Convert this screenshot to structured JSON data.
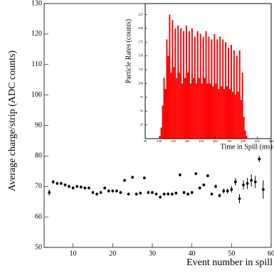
{
  "chart_data": [
    {
      "type": "scatter",
      "y_label": "Average charge/strip (ADC counts)",
      "x_label": "Event number in spill",
      "x": [
        4,
        5,
        6,
        7,
        8,
        9,
        10,
        11,
        12,
        13,
        14,
        15,
        16,
        17,
        18,
        19,
        20,
        21,
        22,
        23,
        24,
        25,
        26,
        27,
        28,
        29,
        30,
        31,
        32,
        33,
        34,
        35,
        36,
        37,
        38,
        39,
        40,
        41,
        42,
        43,
        44,
        45,
        46,
        47,
        48,
        49,
        50,
        51,
        52,
        53,
        54,
        55,
        56,
        57,
        58
      ],
      "values": [
        68,
        71.5,
        71,
        71,
        70.5,
        70,
        69.5,
        70,
        69.8,
        69.5,
        69.5,
        68,
        67.5,
        68,
        69.5,
        68.5,
        68.5,
        68.5,
        68,
        72,
        67.5,
        73,
        67.5,
        67.8,
        72.8,
        68,
        68,
        67.5,
        66.5,
        67.5,
        67.5,
        67.5,
        67.8,
        73.8,
        68,
        67.5,
        68,
        74.2,
        69.5,
        70.5,
        73.5,
        67.5,
        70,
        67,
        68.5,
        68.5,
        69,
        71.5,
        66,
        70.5,
        71,
        72,
        71.5,
        79,
        69
      ],
      "errors": [
        1,
        0.6,
        0.5,
        0.5,
        0.5,
        0.5,
        0.5,
        0.5,
        0.5,
        0.5,
        0.5,
        0.5,
        0.5,
        0.5,
        0.5,
        0.5,
        0.5,
        0.5,
        0.5,
        0.5,
        0.5,
        0.5,
        0.5,
        0.5,
        0.5,
        0.5,
        0.5,
        0.5,
        0.5,
        0.5,
        0.5,
        0.5,
        0.5,
        0.5,
        0.5,
        0.5,
        0.5,
        0.5,
        0.5,
        0.5,
        0.5,
        0.5,
        0.6,
        0.6,
        0.8,
        0.8,
        1,
        1.2,
        1.5,
        1.5,
        1.8,
        2,
        2,
        1,
        3
      ],
      "color": "#000000",
      "xlim": [
        2.7,
        60
      ],
      "xticks": [
        10,
        20,
        30,
        40,
        50,
        60
      ],
      "ylim": [
        50,
        130
      ],
      "yticks": [
        50,
        60,
        70,
        80,
        90,
        100,
        110,
        120,
        130
      ]
    },
    {
      "type": "histogram",
      "y_label": "Particle Rates (counts)",
      "x_label": "Time in Spill (ms)",
      "bins": [
        50,
        55,
        60,
        65,
        70,
        75,
        80,
        85,
        90,
        95,
        100,
        105,
        110,
        115,
        120,
        125,
        130,
        135,
        140,
        145,
        150,
        155,
        160,
        165,
        170,
        175,
        180,
        185,
        190,
        195,
        200,
        205,
        210,
        215,
        220,
        225,
        230,
        235,
        240,
        245,
        250,
        255,
        260,
        265,
        270,
        275,
        280,
        285,
        290,
        295,
        300,
        305,
        310,
        315,
        320,
        325,
        330,
        335,
        340,
        345,
        350,
        355,
        360,
        365,
        370,
        375,
        380,
        385,
        390,
        395,
        400,
        405,
        410,
        415,
        420,
        425,
        430,
        435,
        440,
        445,
        450,
        455,
        460,
        465,
        470,
        475,
        480,
        485,
        490,
        495,
        500
      ],
      "values": [
        0,
        0,
        0,
        0,
        0,
        0,
        0,
        0,
        0,
        0,
        5,
        20,
        60,
        110,
        90,
        180,
        150,
        225,
        120,
        215,
        130,
        200,
        110,
        205,
        120,
        200,
        100,
        195,
        110,
        205,
        120,
        195,
        100,
        200,
        110,
        185,
        100,
        195,
        110,
        190,
        100,
        185,
        110,
        195,
        100,
        185,
        100,
        180,
        95,
        190,
        100,
        180,
        90,
        185,
        95,
        180,
        90,
        175,
        95,
        165,
        90,
        170,
        85,
        160,
        80,
        150,
        85,
        160,
        70,
        120,
        40,
        15,
        5,
        0,
        0,
        0,
        0,
        0,
        0,
        0,
        0,
        0,
        0,
        0,
        0,
        0,
        0,
        0,
        0,
        0
      ],
      "color": "#ff0000",
      "xlim": [
        50,
        500
      ],
      "xticks": [
        50,
        100,
        150,
        200,
        250,
        300,
        350,
        400,
        450,
        500
      ],
      "ylim": [
        0,
        245
      ],
      "yticks": [
        25,
        50,
        75,
        100,
        125,
        150,
        175,
        200,
        225
      ]
    }
  ]
}
